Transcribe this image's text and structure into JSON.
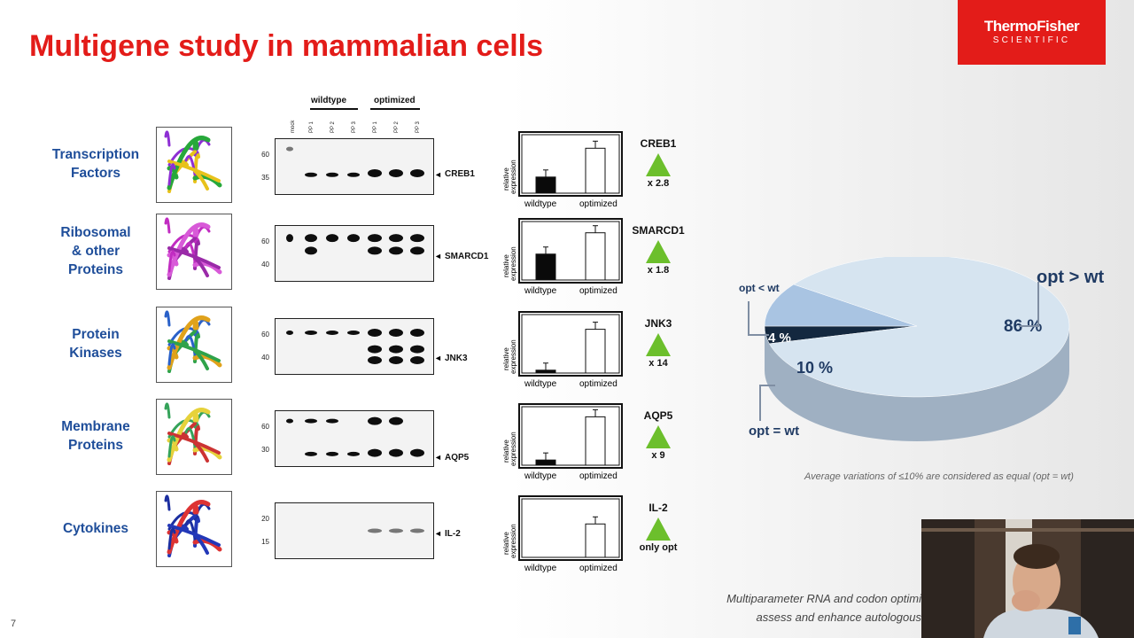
{
  "title": "Multigene study in mammalian cells",
  "logo": {
    "line1": "ThermoFisher",
    "line2": "SCIENTIFIC"
  },
  "western": {
    "group_wildtype": "wildtype",
    "group_optimized": "optimized",
    "lanes": [
      "mock",
      "PP 1",
      "PP 2",
      "PP 3",
      "PP 1",
      "PP 2",
      "PP 3"
    ]
  },
  "rows": [
    {
      "category": [
        "Transcription",
        "Factors"
      ],
      "gene": "CREB1",
      "mw": [
        "60",
        "35"
      ],
      "fold": "x 2.8",
      "wt": 0.28,
      "opt": 0.78
    },
    {
      "category": [
        "Ribosomal",
        "& other",
        "Proteins"
      ],
      "gene": "SMARCD1",
      "mw": [
        "60",
        "40"
      ],
      "fold": "x 1.8",
      "wt": 0.45,
      "opt": 0.82
    },
    {
      "category": [
        "Protein",
        "Kinases"
      ],
      "gene": "JNK3",
      "mw": [
        "60",
        "40"
      ],
      "fold": "x 14",
      "wt": 0.05,
      "opt": 0.76
    },
    {
      "category": [
        "Membrane",
        "Proteins"
      ],
      "gene": "AQP5",
      "mw": [
        "60",
        "30"
      ],
      "fold": "x 9",
      "wt": 0.09,
      "opt": 0.84
    },
    {
      "category": [
        "Cytokines"
      ],
      "gene": "IL-2",
      "mw": [
        "20",
        "15"
      ],
      "fold": "only opt",
      "wt": 0.0,
      "opt": 0.58
    }
  ],
  "bar_axis": {
    "ylabel_line1": "relative",
    "ylabel_line2": "expression",
    "x_wt": "wildtype",
    "x_opt": "optimized"
  },
  "colors": {
    "accent": "#e31c19",
    "category_blue": "#1f4e9a",
    "triangle": "#6cbf2c"
  },
  "chart_data": {
    "type": "pie",
    "slices": [
      {
        "label": "opt > wt",
        "value": 86,
        "value_label": "86 %"
      },
      {
        "label": "opt = wt",
        "value": 10,
        "value_label": "10 %"
      },
      {
        "label": "opt < wt",
        "value": 4,
        "value_label": "4 %"
      }
    ]
  },
  "note": "Average variations of ≤10% are considered as equal (opt = wt)",
  "caption": {
    "line1": "Multiparameter RNA and codon optimi",
    "line2": "assess and enhance autologous"
  },
  "page_number": "7"
}
